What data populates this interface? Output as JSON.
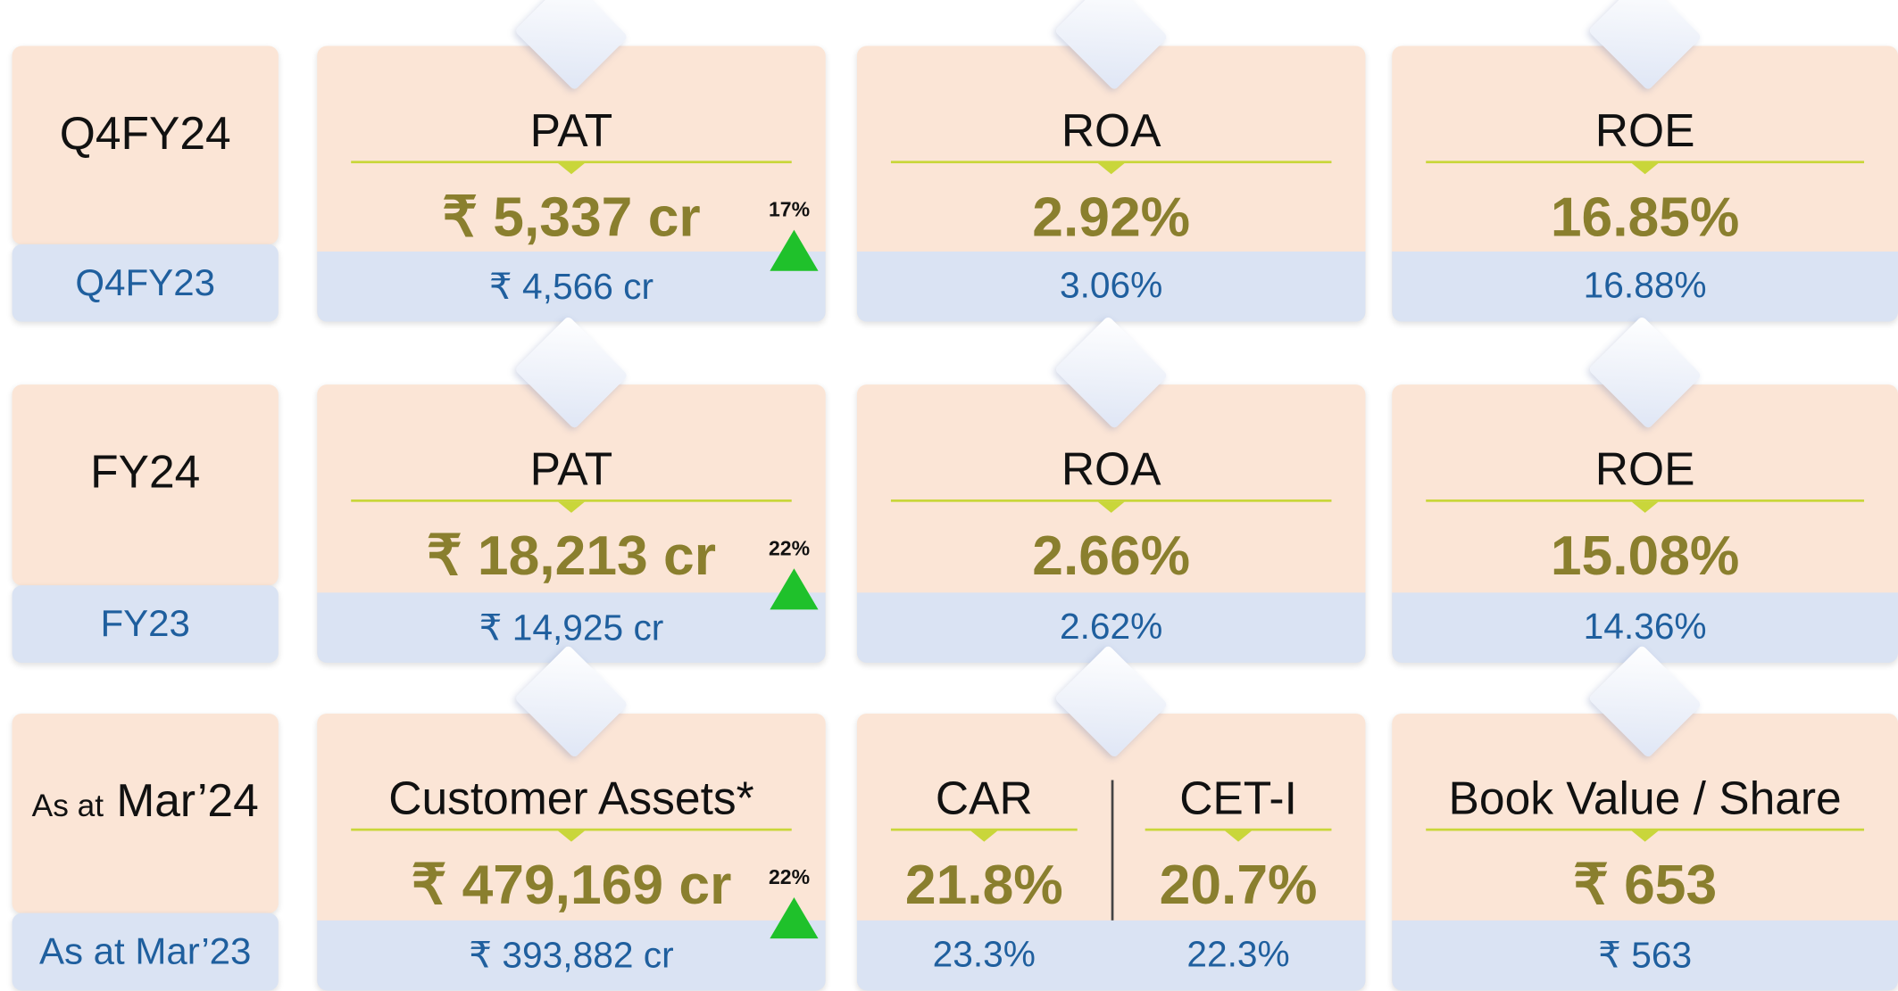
{
  "rows": [
    {
      "label": {
        "text": "Q4FY24"
      },
      "prior_label": "Q4FY23",
      "cards": [
        {
          "title": "PAT",
          "value": "₹ 5,337 cr",
          "prior": "₹ 4,566 cr",
          "growth": "17%"
        },
        {
          "title": "ROA",
          "value": "2.92%",
          "prior": "3.06%"
        },
        {
          "title": "ROE",
          "value": "16.85%",
          "prior": "16.88%"
        }
      ]
    },
    {
      "label": {
        "text": "FY24"
      },
      "prior_label": "FY23",
      "cards": [
        {
          "title": "PAT",
          "value": "₹ 18,213 cr",
          "prior": "₹ 14,925 cr",
          "growth": "22%"
        },
        {
          "title": "ROA",
          "value": "2.66%",
          "prior": "2.62%"
        },
        {
          "title": "ROE",
          "value": "15.08%",
          "prior": "14.36%"
        }
      ]
    },
    {
      "label": {
        "prefix": "As at",
        "text": "Mar’24"
      },
      "prior_label": "As at Mar’23",
      "cards": [
        {
          "title": "Customer Assets*",
          "value": "₹ 479,169 cr",
          "prior": "₹ 393,882 cr",
          "growth": "22%"
        },
        {
          "halves": [
            {
              "title": "CAR",
              "value": "21.8%",
              "prior": "23.3%"
            },
            {
              "title": "CET-I",
              "value": "20.7%",
              "prior": "22.3%"
            }
          ]
        },
        {
          "title": "Book Value / Share",
          "value": "₹ 653",
          "prior": "₹ 563"
        }
      ]
    }
  ]
}
